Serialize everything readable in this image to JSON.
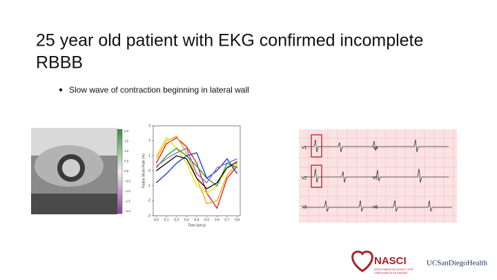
{
  "slide": {
    "title_line1": "25 year old patient with EKG confirmed incomplete",
    "title_line2": "RBBB",
    "bullets": [
      "Slow wave of contraction beginning in lateral wall"
    ]
  },
  "colorbar": {
    "ticks": [
      {
        "value": 2,
        "label": "2.0"
      },
      {
        "value": 1.5,
        "label": "1.5"
      },
      {
        "value": 1,
        "label": "1.0"
      },
      {
        "value": 0.5,
        "label": "0.5"
      },
      {
        "value": 0,
        "label": "0.0"
      },
      {
        "value": -0.5,
        "label": "−0.5"
      },
      {
        "value": -1,
        "label": "−1.0"
      },
      {
        "value": -1.5,
        "label": "−1.5"
      },
      {
        "value": -2,
        "label": "−2.0"
      }
    ]
  },
  "ekg": {
    "leads": [
      "V1",
      "V4",
      "V2",
      "V5",
      "V3",
      "V6"
    ]
  },
  "logos": {
    "nasci": "NASCI",
    "nasci_sub1": "NORTH AMERICAN SOCIETY FOR",
    "nasci_sub2": "CARDIOVASCULAR IMAGING",
    "ucsd": "UCSanDiegoHealth"
  },
  "chart_data": {
    "type": "line",
    "x_label": "Time (secs)",
    "y_label": "Radial Strain Rate (%)",
    "x": [
      0,
      0.1,
      0.2,
      0.3,
      0.4,
      0.5,
      0.6,
      0.7,
      0.8
    ],
    "series": [
      {
        "color": "#d62728",
        "values": [
          0.5,
          1.8,
          2.2,
          1.6,
          0.5,
          -1.5,
          -2.5,
          -0.5,
          0.3
        ]
      },
      {
        "color": "#ff9f1c",
        "values": [
          0.8,
          2.0,
          2.3,
          1.2,
          -0.5,
          -2.2,
          -2.0,
          -0.3,
          0.5
        ]
      },
      {
        "color": "#e6e600",
        "values": [
          1.0,
          2.2,
          1.5,
          0.5,
          -1.0,
          -1.5,
          -1.0,
          0.2,
          0.4
        ]
      },
      {
        "color": "#2ca02c",
        "values": [
          0.2,
          1.0,
          1.5,
          1.0,
          0.3,
          -0.5,
          -1.0,
          0.5,
          0.2
        ]
      },
      {
        "color": "#1f3fcf",
        "values": [
          -0.8,
          -0.2,
          0.5,
          1.0,
          1.2,
          -0.5,
          0.0,
          0.8,
          -0.2
        ]
      },
      {
        "color": "#9467bd",
        "values": [
          0.3,
          0.8,
          1.2,
          1.5,
          -0.2,
          -0.8,
          0.2,
          0.5,
          0.8
        ]
      },
      {
        "color": "#111111",
        "values": [
          0.0,
          0.5,
          1.0,
          0.8,
          -0.5,
          -1.2,
          -0.8,
          0.2,
          0.6
        ]
      }
    ],
    "xlim": [
      -0.03,
      0.83
    ],
    "ylim": [
      -3,
      3
    ],
    "xticks": [
      {
        "value": 0,
        "label": "0.0"
      },
      {
        "value": 0.1,
        "label": "0.1"
      },
      {
        "value": 0.2,
        "label": "0.2"
      },
      {
        "value": 0.3,
        "label": "0.3"
      },
      {
        "value": 0.4,
        "label": "0.4"
      },
      {
        "value": 0.5,
        "label": "0.5"
      },
      {
        "value": 0.6,
        "label": "0.6"
      },
      {
        "value": 0.7,
        "label": "0.7"
      },
      {
        "value": 0.8,
        "label": "0.8"
      }
    ],
    "yticks": [
      3,
      2,
      1,
      0,
      -1,
      -2,
      -3
    ]
  }
}
